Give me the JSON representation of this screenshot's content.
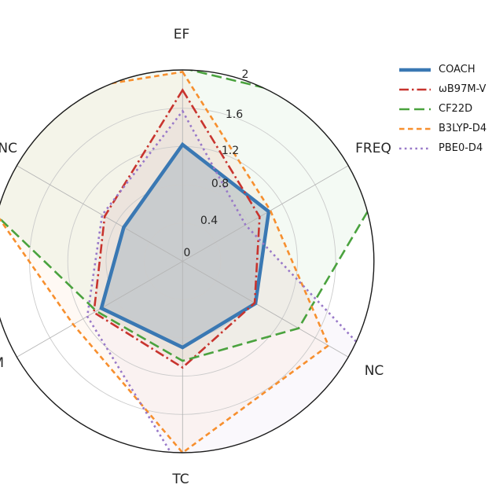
{
  "chart_data": {
    "type": "radar",
    "rmax": 2,
    "r_tick_step": 0.4,
    "grid": true,
    "legend_position": "upper-right",
    "axes": [
      {
        "label": "EF",
        "angle_deg": 90,
        "fully_visible": true
      },
      {
        "label": "FREQ",
        "angle_deg": 30,
        "fully_visible": true
      },
      {
        "label": "NC",
        "angle_deg": -30,
        "fully_visible": true
      },
      {
        "label": "TC",
        "angle_deg": -90,
        "fully_visible": true
      },
      {
        "label": "M",
        "angle_deg": -150,
        "fully_visible": false
      },
      {
        "label": "NC",
        "angle_deg": 150,
        "fully_visible": false
      }
    ],
    "r_ticks": [
      "0",
      "0.4",
      "0.8",
      "1.2",
      "1.6",
      "2"
    ],
    "series": [
      {
        "name": "COACH",
        "color": "#3a78b3",
        "style": "solid",
        "width": 4.5,
        "fill_alpha": 0.22,
        "values": [
          1.22,
          1.04,
          0.88,
          0.9,
          0.98,
          0.71
        ]
      },
      {
        "name": "ωB97M-V",
        "color": "#c8342e",
        "style": "dashdot",
        "width": 2.6,
        "fill_alpha": 0.05,
        "values": [
          1.79,
          0.93,
          0.87,
          1.11,
          1.07,
          0.94
        ]
      },
      {
        "name": "CF22D",
        "color": "#4aa23e",
        "style": "dashed-long",
        "width": 2.6,
        "fill_alpha": 0.06,
        "values": [
          2.02,
          2.85,
          1.4,
          1.04,
          1.04,
          4.2
        ]
      },
      {
        "name": "B3LYP-D4",
        "color": "#f78f2e",
        "style": "dashed",
        "width": 2.6,
        "fill_alpha": 0.05,
        "values": [
          1.98,
          1.06,
          1.76,
          2.0,
          1.32,
          3.1
        ]
      },
      {
        "name": "PBE0-D4",
        "color": "#9878c8",
        "style": "dotted",
        "width": 2.6,
        "fill_alpha": 0.05,
        "values": [
          1.57,
          0.76,
          2.6,
          2.2,
          1.15,
          0.97
        ]
      }
    ]
  }
}
